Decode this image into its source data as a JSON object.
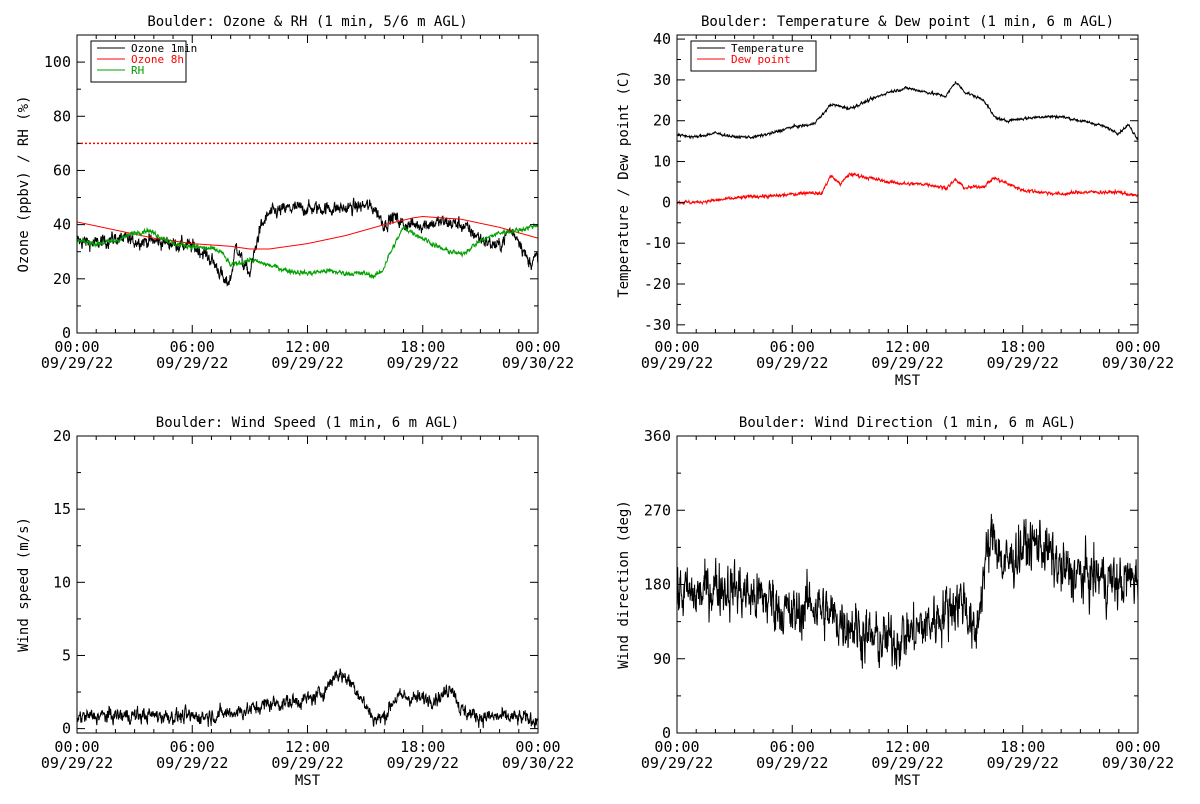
{
  "chart_data": [
    {
      "type": "line",
      "title": "Boulder: Ozone & RH (1 min, 5/6 m AGL)",
      "xlabel": "",
      "ylabel": "Ozone (ppbv) / RH (%)",
      "ylim": [
        0,
        110
      ],
      "yticks": [
        0,
        20,
        40,
        60,
        80,
        100
      ],
      "xlim": [
        0,
        24
      ],
      "xticks": [
        0,
        6,
        12,
        18,
        24
      ],
      "xtick_labels": [
        [
          "00:00",
          "09/29/22"
        ],
        [
          "06:00",
          "09/29/22"
        ],
        [
          "12:00",
          "09/29/22"
        ],
        [
          "18:00",
          "09/29/22"
        ],
        [
          "00:00",
          "09/30/22"
        ]
      ],
      "legend": "top-left",
      "hline": {
        "y": 70,
        "color": "#ff0000",
        "style": "dotted"
      },
      "series": [
        {
          "name": "Ozone 1min",
          "color": "#000000",
          "noise": 2.2,
          "x": [
            0,
            1,
            2,
            3,
            4,
            5,
            6,
            6.5,
            7,
            7.5,
            7.7,
            8,
            8.3,
            8.6,
            9,
            9.5,
            10,
            11,
            12,
            13,
            14,
            15,
            15.5,
            16,
            16.5,
            17,
            18,
            19,
            20,
            21,
            21.5,
            22,
            22.5,
            23,
            23.5,
            24
          ],
          "y": [
            34,
            33,
            35,
            34,
            34,
            33,
            32,
            30,
            27,
            22,
            18,
            20,
            33,
            26,
            22,
            38,
            44,
            46,
            46,
            46,
            46,
            47,
            46,
            40,
            43,
            40,
            40,
            41,
            40,
            35,
            33,
            32,
            38,
            35,
            26,
            28
          ]
        },
        {
          "name": "Ozone 8h",
          "color": "#ff0000",
          "noise": 0,
          "x": [
            0,
            2,
            4,
            6,
            8,
            9,
            10,
            12,
            14,
            16,
            17.5,
            18,
            20,
            22,
            24
          ],
          "y": [
            41,
            38,
            35,
            33,
            32,
            31,
            31,
            33,
            36,
            40,
            42.5,
            43,
            42,
            39,
            35
          ]
        },
        {
          "name": "RH",
          "color": "#00a000",
          "noise": 0.8,
          "x": [
            0,
            1,
            2,
            3,
            3.7,
            4.5,
            5,
            6,
            7,
            7.5,
            8,
            8.5,
            9,
            10,
            11,
            12,
            13,
            14,
            15,
            15.5,
            15.9,
            16.2,
            17,
            18,
            19,
            20,
            21,
            22,
            23,
            24
          ],
          "y": [
            34,
            33,
            34,
            37,
            38,
            35,
            33,
            32,
            31,
            30,
            25,
            26,
            27,
            25,
            23,
            22,
            23,
            22,
            22,
            21,
            23,
            28,
            39,
            35,
            31,
            29,
            34,
            37,
            38,
            40
          ]
        }
      ]
    },
    {
      "type": "line",
      "title": "Boulder: Temperature & Dew point (1 min, 6 m AGL)",
      "xlabel": "MST",
      "ylabel": "Temperature / Dew point (C)",
      "ylim": [
        -32,
        41
      ],
      "yticks": [
        -30,
        -20,
        -10,
        0,
        10,
        20,
        30,
        40
      ],
      "xlim": [
        0,
        24
      ],
      "xticks": [
        0,
        6,
        12,
        18,
        24
      ],
      "xtick_labels": [
        [
          "00:00",
          "09/29/22"
        ],
        [
          "06:00",
          "09/29/22"
        ],
        [
          "12:00",
          "09/29/22"
        ],
        [
          "18:00",
          "09/29/22"
        ],
        [
          "00:00",
          "09/30/22"
        ]
      ],
      "legend": "top-left",
      "series": [
        {
          "name": "Temperature",
          "color": "#000000",
          "noise": 0.3,
          "x": [
            0,
            1,
            2,
            3,
            4,
            5,
            6,
            7,
            7.5,
            8,
            9,
            10,
            11,
            12,
            13,
            14,
            14.5,
            15,
            16,
            16.5,
            17,
            18,
            19,
            20,
            21,
            22,
            23,
            23.5,
            24
          ],
          "y": [
            16.5,
            16,
            17,
            16,
            16,
            17,
            18.5,
            19,
            21,
            24,
            23,
            25,
            27,
            28,
            27,
            26,
            29.5,
            27,
            25,
            21,
            20,
            20.5,
            21,
            21,
            20,
            19,
            17,
            19,
            15.5
          ]
        },
        {
          "name": "Dew point",
          "color": "#ff0000",
          "noise": 0.35,
          "x": [
            0,
            1,
            2,
            3,
            4,
            5,
            6,
            7,
            7.5,
            8,
            8.5,
            9,
            10,
            11,
            12,
            13,
            14,
            14.5,
            15,
            16,
            16.5,
            17,
            18,
            19,
            20,
            21,
            22,
            23,
            24
          ],
          "y": [
            0,
            0,
            0.5,
            1,
            1.5,
            1.5,
            2,
            2.5,
            2,
            6.5,
            4.5,
            7,
            6,
            5,
            4.5,
            4.5,
            3.5,
            5.5,
            3.5,
            4,
            6,
            5,
            3,
            2.5,
            2,
            2.5,
            2.5,
            2.5,
            1.5
          ]
        }
      ]
    },
    {
      "type": "line",
      "title": "Boulder: Wind Speed (1 min, 6 m AGL)",
      "xlabel": "MST",
      "ylabel": "Wind speed (m/s)",
      "ylim": [
        -0.3,
        20
      ],
      "yticks": [
        0,
        5,
        10,
        15,
        20
      ],
      "xlim": [
        0,
        24
      ],
      "xticks": [
        0,
        6,
        12,
        18,
        24
      ],
      "xtick_labels": [
        [
          "00:00",
          "09/29/22"
        ],
        [
          "06:00",
          "09/29/22"
        ],
        [
          "12:00",
          "09/29/22"
        ],
        [
          "18:00",
          "09/29/22"
        ],
        [
          "00:00",
          "09/30/22"
        ]
      ],
      "series": [
        {
          "name": "",
          "color": "#000000",
          "noise": 0.45,
          "x": [
            0,
            2,
            4,
            6,
            7,
            8,
            9,
            10,
            11,
            12,
            12.5,
            13,
            13.5,
            14,
            14.5,
            15,
            15.5,
            16,
            16.5,
            17,
            18,
            19,
            19.5,
            20,
            21,
            22,
            23,
            24
          ],
          "y": [
            0.8,
            0.9,
            0.9,
            0.8,
            0.9,
            1.1,
            1.3,
            1.7,
            1.8,
            2.0,
            2.2,
            2.8,
            3.8,
            3.5,
            2.8,
            1.6,
            0.6,
            0.8,
            2.0,
            2.2,
            2.0,
            2.2,
            3.0,
            1.2,
            0.8,
            0.8,
            0.7,
            0.6
          ]
        }
      ]
    },
    {
      "type": "line",
      "title": "Boulder: Wind Direction (1 min, 6 m AGL)",
      "xlabel": "MST",
      "ylabel": "Wind direction (deg)",
      "ylim": [
        0,
        360
      ],
      "yticks": [
        0,
        90,
        180,
        270,
        360
      ],
      "xlim": [
        0,
        24
      ],
      "xticks": [
        0,
        6,
        12,
        18,
        24
      ],
      "xtick_labels": [
        [
          "00:00",
          "09/29/22"
        ],
        [
          "06:00",
          "09/29/22"
        ],
        [
          "12:00",
          "09/29/22"
        ],
        [
          "18:00",
          "09/29/22"
        ],
        [
          "00:00",
          "09/30/22"
        ]
      ],
      "series": [
        {
          "name": "",
          "color": "#000000",
          "noise": 28,
          "x": [
            0,
            1,
            2,
            3,
            4,
            5,
            5.5,
            6,
            7,
            8,
            9,
            10,
            11,
            12,
            13,
            14,
            14.5,
            15,
            15.5,
            16,
            16.5,
            17,
            18,
            19,
            20,
            21,
            22,
            23,
            24
          ],
          "y": [
            170,
            165,
            180,
            175,
            165,
            160,
            150,
            140,
            160,
            140,
            135,
            115,
            110,
            120,
            130,
            150,
            160,
            160,
            110,
            200,
            245,
            200,
            225,
            230,
            195,
            190,
            190,
            180,
            190
          ]
        }
      ]
    }
  ]
}
